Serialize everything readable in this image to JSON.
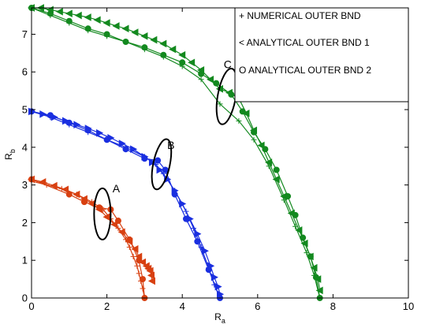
{
  "chart_data": {
    "type": "line",
    "title": "",
    "xlabel": "R",
    "xlabel_sub": "a",
    "ylabel": "R",
    "ylabel_sub": "b",
    "xlim": [
      0,
      10
    ],
    "ylim": [
      0,
      7.7
    ],
    "xticks": [
      "0",
      "2",
      "4",
      "6",
      "8",
      "10"
    ],
    "xtick_values": [
      0,
      2,
      4,
      6,
      8,
      10
    ],
    "yticks": [
      "0",
      "1",
      "2",
      "3",
      "4",
      "5",
      "6",
      "7"
    ],
    "ytick_values": [
      0,
      1,
      2,
      3,
      4,
      5,
      6,
      7
    ],
    "grid": false,
    "legend": {
      "placement": "top-right",
      "entries": [
        "+ NUMERICAL OUTER BND",
        "< ANALYTICAL OUTER BND 1",
        "O ANALYTICAL OUTER BND 2"
      ]
    },
    "annotations": [
      {
        "text": "A",
        "x": 2.15,
        "y": 2.8,
        "ellipse": {
          "cx": 1.88,
          "cy": 2.23,
          "rx": 0.22,
          "ry": 0.68,
          "rotate": 0
        }
      },
      {
        "text": "B",
        "x": 3.6,
        "y": 3.95,
        "ellipse": {
          "cx": 3.45,
          "cy": 3.55,
          "rx": 0.22,
          "ry": 0.68,
          "rotate": 12
        }
      },
      {
        "text": "C",
        "x": 5.1,
        "y": 6.1,
        "ellipse": {
          "cx": 5.18,
          "cy": 5.35,
          "rx": 0.24,
          "ry": 0.75,
          "rotate": 10
        }
      }
    ],
    "groups": [
      {
        "color": "#d84011",
        "series": [
          {
            "kind": "numerical",
            "marker": "plus",
            "x": [
              0,
              0.4,
              0.8,
              1.2,
              1.6,
              1.9,
              2.1,
              2.3,
              2.5,
              2.6,
              2.7,
              2.8,
              2.85,
              2.9,
              2.95,
              3.0
            ],
            "y": [
              3.1,
              3.0,
              2.9,
              2.75,
              2.55,
              2.35,
              2.1,
              1.85,
              1.55,
              1.35,
              1.1,
              0.85,
              0.65,
              0.45,
              0.25,
              0.0
            ]
          },
          {
            "kind": "analytical1",
            "marker": "triangle-left",
            "x": [
              0,
              0.3,
              0.6,
              0.9,
              1.2,
              1.4,
              1.6,
              1.8,
              2.0,
              2.2,
              2.4,
              2.6,
              2.75,
              2.85,
              2.95,
              3.05,
              3.1,
              3.15,
              3.18,
              3.2
            ],
            "y": [
              3.15,
              3.08,
              2.98,
              2.88,
              2.75,
              2.63,
              2.5,
              2.35,
              2.15,
              1.95,
              1.75,
              1.5,
              1.3,
              1.1,
              0.95,
              0.85,
              0.78,
              0.72,
              0.6,
              0.45
            ]
          },
          {
            "kind": "analytical2",
            "marker": "circle",
            "x": [
              0,
              1.0,
              1.4,
              1.8,
              2.1,
              2.3,
              2.6,
              2.85,
              2.95,
              3.0
            ],
            "y": [
              3.15,
              2.75,
              2.55,
              2.4,
              2.35,
              2.05,
              1.55,
              1.0,
              0.5,
              0.0
            ]
          }
        ]
      },
      {
        "color": "#1a2fe0",
        "series": [
          {
            "kind": "numerical",
            "marker": "plus",
            "x": [
              0,
              0.5,
              1.0,
              1.5,
              2.0,
              2.5,
              3.0,
              3.3,
              3.5,
              3.8,
              4.1,
              4.3,
              4.5,
              4.7,
              4.85,
              5.0
            ],
            "y": [
              4.95,
              4.8,
              4.6,
              4.4,
              4.2,
              4.0,
              3.75,
              3.55,
              3.3,
              2.85,
              2.3,
              1.85,
              1.35,
              0.8,
              0.35,
              0.0
            ]
          },
          {
            "kind": "analytical1",
            "marker": "triangle-right",
            "x": [
              0,
              0.3,
              0.6,
              0.9,
              1.2,
              1.5,
              1.8,
              2.1,
              2.4,
              2.7,
              3.0,
              3.2,
              3.4,
              3.6,
              3.8,
              4.0,
              4.2,
              4.4,
              4.6,
              4.75,
              4.85,
              4.95,
              5.0
            ],
            "y": [
              4.95,
              4.88,
              4.8,
              4.7,
              4.6,
              4.5,
              4.38,
              4.25,
              4.1,
              3.95,
              3.75,
              3.6,
              3.4,
              3.15,
              2.85,
              2.5,
              2.1,
              1.7,
              1.25,
              0.85,
              0.55,
              0.3,
              0.1
            ]
          },
          {
            "kind": "analytical2",
            "marker": "circle",
            "x": [
              0,
              0.5,
              1.0,
              1.5,
              2.0,
              2.5,
              3.0,
              3.35,
              3.55,
              3.8,
              4.1,
              4.4,
              4.7,
              5.0
            ],
            "y": [
              4.95,
              4.85,
              4.65,
              4.45,
              4.2,
              3.95,
              3.7,
              3.65,
              3.4,
              2.75,
              2.1,
              1.5,
              0.75,
              0.0
            ]
          }
        ]
      },
      {
        "color": "#13891f",
        "series": [
          {
            "kind": "numerical",
            "marker": "plus",
            "x": [
              0,
              0.5,
              1.0,
              1.5,
              2.0,
              2.5,
              3.0,
              3.5,
              4.0,
              4.5,
              5.0,
              5.5,
              5.9,
              6.3,
              6.7,
              7.0,
              7.3,
              7.5,
              7.65
            ],
            "y": [
              7.7,
              7.5,
              7.3,
              7.1,
              6.95,
              6.8,
              6.6,
              6.4,
              6.15,
              5.8,
              5.15,
              4.7,
              4.2,
              3.5,
              2.6,
              1.9,
              1.2,
              0.6,
              0.0
            ]
          },
          {
            "kind": "analytical1",
            "marker": "triangle-left",
            "x": [
              0,
              0.25,
              0.5,
              0.75,
              1.0,
              1.25,
              1.5,
              1.75,
              2.0,
              2.25,
              2.5,
              2.75,
              3.0,
              3.25,
              3.5,
              3.75,
              4.0,
              4.25,
              4.5,
              4.75,
              5.0,
              5.25,
              5.5,
              5.7,
              5.9,
              6.1,
              6.3,
              6.5,
              6.7,
              6.9,
              7.1,
              7.25,
              7.4,
              7.5,
              7.6,
              7.65
            ],
            "y": [
              7.7,
              7.7,
              7.65,
              7.6,
              7.55,
              7.5,
              7.45,
              7.38,
              7.3,
              7.22,
              7.15,
              7.05,
              6.95,
              6.85,
              6.75,
              6.6,
              6.45,
              6.25,
              6.05,
              5.8,
              5.55,
              5.45,
              5.3,
              4.9,
              4.45,
              4.05,
              3.6,
              3.15,
              2.7,
              2.25,
              1.8,
              1.45,
              1.1,
              0.8,
              0.5,
              0.2
            ]
          },
          {
            "kind": "analytical2",
            "marker": "circle",
            "x": [
              0,
              0.5,
              1.0,
              1.5,
              2.0,
              2.5,
              3.0,
              3.5,
              4.0,
              4.5,
              4.9,
              5.3,
              5.6,
              5.9,
              6.2,
              6.5,
              6.8,
              7.0,
              7.2,
              7.4,
              7.55,
              7.65
            ],
            "y": [
              7.7,
              7.55,
              7.35,
              7.15,
              7.0,
              6.8,
              6.65,
              6.45,
              6.25,
              5.95,
              5.7,
              5.4,
              4.95,
              4.4,
              3.95,
              3.4,
              2.7,
              2.2,
              1.6,
              1.1,
              0.55,
              0.0
            ]
          }
        ]
      }
    ]
  }
}
